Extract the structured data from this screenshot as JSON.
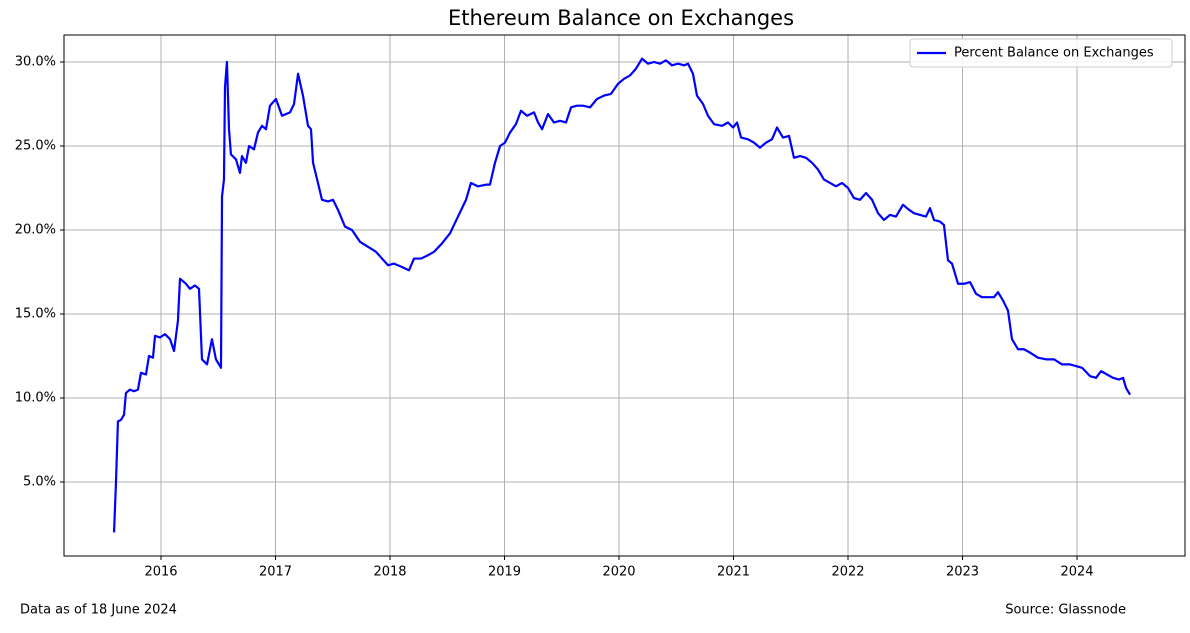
{
  "chart_data": {
    "type": "line",
    "title": "Ethereum Balance on Exchanges",
    "footnote_left": "Data as of 18 June 2024",
    "footnote_right": "Source: Glassnode",
    "grid": true,
    "legend": "upper right",
    "xlim": [
      2015.153,
      2024.943
    ],
    "xticks": [
      2016,
      2017,
      2018,
      2019,
      2020,
      2021,
      2022,
      2023,
      2024
    ],
    "ylim": [
      0.595,
      31.607
    ],
    "yticks": [
      {
        "value": 5,
        "label": "5.0%"
      },
      {
        "value": 10,
        "label": "10.0%"
      },
      {
        "value": 15,
        "label": "15.0%"
      },
      {
        "value": 20,
        "label": "20.0%"
      },
      {
        "value": 25,
        "label": "25.0%"
      },
      {
        "value": 30,
        "label": "30.0%"
      }
    ],
    "x": [
      2015.59,
      2015.607,
      2015.624,
      2015.651,
      2015.677,
      2015.694,
      2015.729,
      2015.764,
      2015.799,
      2015.825,
      2015.869,
      2015.895,
      2015.93,
      2015.948,
      2015.991,
      2016.035,
      2016.079,
      2016.114,
      2016.148,
      2016.166,
      2016.218,
      2016.253,
      2016.297,
      2016.332,
      2016.358,
      2016.402,
      2016.445,
      2016.48,
      2016.524,
      2016.533,
      2016.55,
      2016.559,
      2016.576,
      2016.594,
      2016.611,
      2016.655,
      2016.69,
      2016.707,
      2016.742,
      2016.769,
      2016.812,
      2016.847,
      2016.882,
      2016.917,
      2016.952,
      2017.004,
      2017.057,
      2017.127,
      2017.162,
      2017.197,
      2017.24,
      2017.284,
      2017.31,
      2017.328,
      2017.371,
      2017.406,
      2017.459,
      2017.502,
      2017.546,
      2017.607,
      2017.668,
      2017.738,
      2017.808,
      2017.878,
      2017.93,
      2017.983,
      2018.035,
      2018.105,
      2018.166,
      2018.21,
      2018.271,
      2018.332,
      2018.384,
      2018.454,
      2018.524,
      2018.594,
      2018.664,
      2018.707,
      2018.769,
      2018.838,
      2018.873,
      2018.917,
      2018.961,
      2019.004,
      2019.048,
      2019.1,
      2019.144,
      2019.197,
      2019.258,
      2019.293,
      2019.328,
      2019.38,
      2019.432,
      2019.485,
      2019.537,
      2019.581,
      2019.633,
      2019.686,
      2019.747,
      2019.808,
      2019.869,
      2019.93,
      2019.991,
      2020.044,
      2020.096,
      2020.148,
      2020.201,
      2020.253,
      2020.306,
      2020.358,
      2020.41,
      2020.463,
      2020.515,
      2020.568,
      2020.603,
      2020.646,
      2020.681,
      2020.734,
      2020.777,
      2020.83,
      2020.9,
      2020.952,
      2020.996,
      2021.031,
      2021.066,
      2021.127,
      2021.179,
      2021.231,
      2021.284,
      2021.336,
      2021.38,
      2021.432,
      2021.485,
      2021.528,
      2021.581,
      2021.633,
      2021.686,
      2021.738,
      2021.79,
      2021.843,
      2021.895,
      2021.948,
      2022.0,
      2022.052,
      2022.105,
      2022.157,
      2022.21,
      2022.262,
      2022.314,
      2022.367,
      2022.419,
      2022.48,
      2022.533,
      2022.576,
      2022.629,
      2022.681,
      2022.716,
      2022.751,
      2022.803,
      2022.838,
      2022.873,
      2022.908,
      2022.961,
      2023.013,
      2023.066,
      2023.118,
      2023.17,
      2023.223,
      2023.275,
      2023.31,
      2023.354,
      2023.397,
      2023.432,
      2023.485,
      2023.537,
      2023.59,
      2023.659,
      2023.729,
      2023.799,
      2023.869,
      2023.939,
      2023.991,
      2024.044,
      2024.114,
      2024.166,
      2024.21,
      2024.262,
      2024.314,
      2024.367,
      2024.402,
      2024.428,
      2024.463
    ],
    "series": [
      {
        "name": "Percent Balance on Exchanges",
        "color": "#0000ff",
        "values": [
          2.0,
          5.0,
          8.6,
          8.7,
          9.0,
          10.3,
          10.5,
          10.4,
          10.5,
          11.5,
          11.4,
          12.5,
          12.4,
          13.7,
          13.6,
          13.8,
          13.5,
          12.8,
          14.6,
          17.1,
          16.8,
          16.5,
          16.7,
          16.5,
          12.3,
          12.0,
          13.5,
          12.3,
          11.8,
          22.0,
          23.0,
          28.5,
          30.0,
          26.0,
          24.5,
          24.2,
          23.4,
          24.4,
          24.0,
          25.0,
          24.8,
          25.8,
          26.2,
          26.0,
          27.4,
          27.8,
          26.8,
          27.0,
          27.5,
          29.3,
          28.0,
          26.2,
          26.0,
          24.0,
          22.8,
          21.8,
          21.7,
          21.8,
          21.2,
          20.2,
          20.0,
          19.3,
          19.0,
          18.7,
          18.3,
          17.9,
          18.0,
          17.8,
          17.6,
          18.3,
          18.3,
          18.5,
          18.7,
          19.2,
          19.8,
          20.8,
          21.8,
          22.8,
          22.6,
          22.7,
          22.7,
          24.0,
          25.0,
          25.2,
          25.8,
          26.3,
          27.1,
          26.8,
          27.0,
          26.4,
          26.0,
          26.9,
          26.4,
          26.5,
          26.4,
          27.3,
          27.4,
          27.4,
          27.3,
          27.8,
          28.0,
          28.1,
          28.7,
          29.0,
          29.2,
          29.6,
          30.2,
          29.9,
          30.0,
          29.9,
          30.1,
          29.8,
          29.9,
          29.8,
          29.9,
          29.3,
          28.0,
          27.5,
          26.8,
          26.3,
          26.2,
          26.4,
          26.1,
          26.4,
          25.5,
          25.4,
          25.2,
          24.9,
          25.2,
          25.4,
          26.1,
          25.5,
          25.6,
          24.3,
          24.4,
          24.3,
          24.0,
          23.6,
          23.0,
          22.8,
          22.6,
          22.8,
          22.5,
          21.9,
          21.8,
          22.2,
          21.8,
          21.0,
          20.6,
          20.9,
          20.8,
          21.5,
          21.2,
          21.0,
          20.9,
          20.8,
          21.3,
          20.6,
          20.5,
          20.3,
          18.2,
          18.0,
          16.8,
          16.8,
          16.9,
          16.2,
          16.0,
          16.0,
          16.0,
          16.3,
          15.8,
          15.2,
          13.5,
          12.9,
          12.9,
          12.7,
          12.4,
          12.3,
          12.3,
          12.0,
          12.0,
          11.9,
          11.8,
          11.3,
          11.2,
          11.6,
          11.4,
          11.2,
          11.1,
          11.2,
          10.6,
          10.2
        ]
      }
    ]
  }
}
